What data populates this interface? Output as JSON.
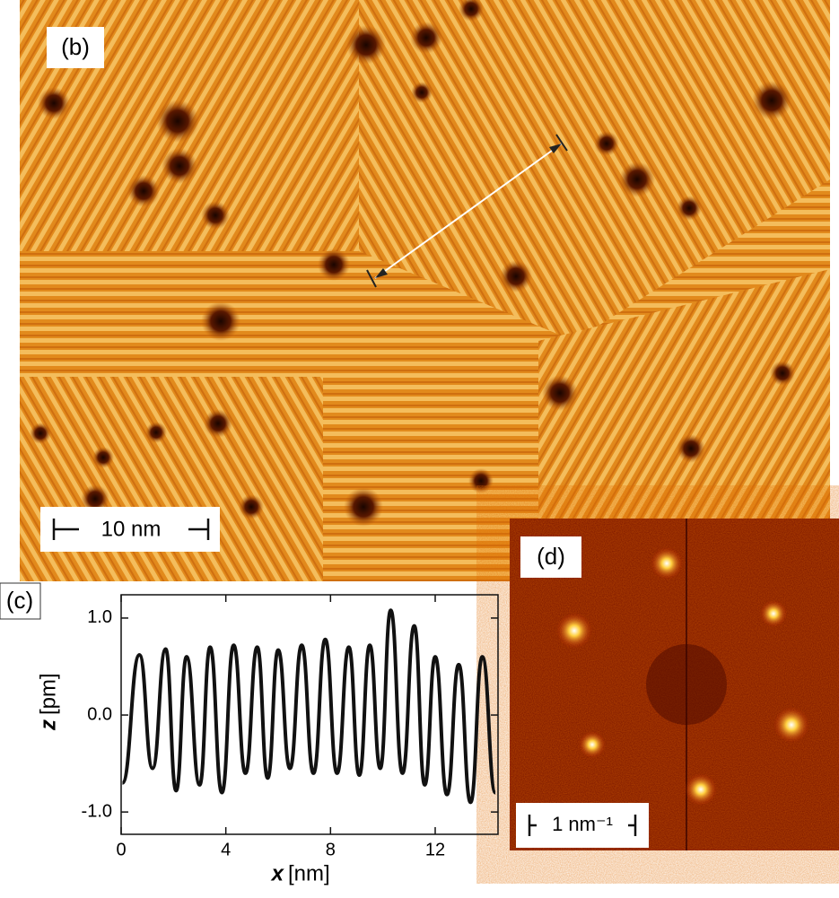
{
  "panels": {
    "b": {
      "label": "(b)",
      "scale_bar": "10 nm"
    },
    "d": {
      "label": "(d)",
      "scale_bar": "1 nm⁻¹"
    }
  },
  "chart_data": {
    "type": "line",
    "label": "(c)",
    "x_label": {
      "symbol": "x",
      "unit": "[nm]"
    },
    "y_label": {
      "symbol": "z",
      "unit": "[pm]"
    },
    "color": "#111111",
    "x": [
      0.05,
      0.7,
      1.2,
      1.7,
      2.1,
      2.5,
      3.0,
      3.4,
      3.85,
      4.3,
      4.75,
      5.2,
      5.6,
      6.0,
      6.45,
      6.9,
      7.35,
      7.8,
      8.25,
      8.7,
      9.1,
      9.5,
      9.9,
      10.3,
      10.75,
      11.2,
      11.6,
      12.0,
      12.45,
      12.9,
      13.35,
      13.8,
      14.3
    ],
    "values": [
      -0.7,
      0.62,
      -0.55,
      0.68,
      -0.78,
      0.6,
      -0.72,
      0.7,
      -0.8,
      0.72,
      -0.6,
      0.7,
      -0.65,
      0.67,
      -0.55,
      0.72,
      -0.6,
      0.78,
      -0.6,
      0.7,
      -0.62,
      0.72,
      -0.55,
      1.08,
      -0.6,
      0.92,
      -0.72,
      0.6,
      -0.82,
      0.52,
      -0.9,
      0.6,
      -0.8
    ],
    "xlim": [
      0,
      14.4
    ],
    "ylim": [
      -1.23,
      1.24
    ],
    "xticks": [
      0,
      4,
      8,
      12
    ],
    "yticks": [
      {
        "value": -1,
        "label": "-1.0"
      },
      {
        "value": 0,
        "label": "0.0"
      },
      {
        "value": 1,
        "label": "1.0"
      }
    ]
  }
}
